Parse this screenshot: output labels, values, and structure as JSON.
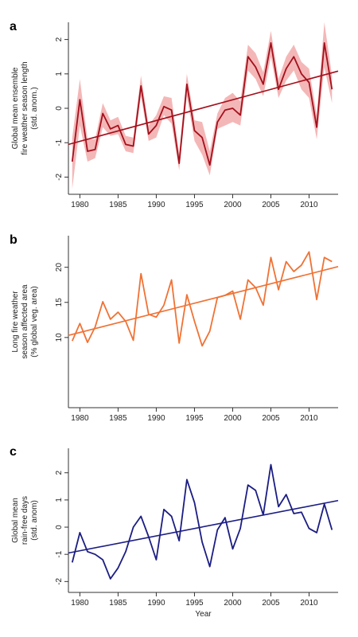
{
  "chart_data": [
    {
      "type": "line",
      "panel_label": "a",
      "ylabel_lines": [
        "Global mean ensemble",
        "fire weather season length",
        "(std. anom.)"
      ],
      "xlabel": "",
      "xlim": [
        1978.5,
        2013.8
      ],
      "ylim": [
        -2.5,
        2.5
      ],
      "xticks": [
        1980,
        1985,
        1990,
        1995,
        2000,
        2005,
        2010
      ],
      "yticks": [
        -2,
        -1,
        0,
        1,
        2
      ],
      "colors": {
        "line": "#a3101c",
        "band": "#f4b7b7",
        "trend": "#a3101c"
      },
      "series": [
        {
          "role": "mean",
          "x": [
            1979,
            1980,
            1981,
            1982,
            1983,
            1984,
            1985,
            1986,
            1987,
            1988,
            1989,
            1990,
            1991,
            1992,
            1993,
            1994,
            1995,
            1996,
            1997,
            1998,
            1999,
            2000,
            2001,
            2002,
            2003,
            2004,
            2005,
            2006,
            2007,
            2008,
            2009,
            2010,
            2011,
            2012,
            2013
          ],
          "values": [
            -1.55,
            0.25,
            -1.25,
            -1.2,
            -0.15,
            -0.6,
            -0.5,
            -1.05,
            -1.1,
            0.65,
            -0.75,
            -0.5,
            0.05,
            -0.05,
            -1.6,
            0.7,
            -0.65,
            -0.85,
            -1.65,
            -0.4,
            -0.05,
            0.0,
            -0.2,
            1.5,
            1.2,
            0.7,
            1.9,
            0.55,
            1.15,
            1.5,
            1.0,
            0.75,
            -0.55,
            1.9,
            0.55
          ],
          "lower": [
            -2.35,
            -0.5,
            -1.55,
            -1.45,
            -0.55,
            -0.8,
            -0.75,
            -1.25,
            -1.3,
            0.35,
            -0.95,
            -0.85,
            -0.2,
            -0.45,
            -1.8,
            0.35,
            -0.95,
            -1.35,
            -1.95,
            -0.6,
            -0.5,
            -0.4,
            -0.5,
            1.1,
            0.85,
            0.35,
            1.5,
            0.3,
            0.8,
            1.1,
            0.55,
            0.3,
            -0.9,
            1.2,
            0.15
          ],
          "upper": [
            -0.85,
            0.85,
            -0.9,
            -0.9,
            0.15,
            -0.35,
            -0.25,
            -0.8,
            -0.85,
            0.95,
            -0.5,
            -0.2,
            0.35,
            0.3,
            -1.3,
            1.0,
            -0.35,
            -0.4,
            -1.25,
            -0.15,
            0.3,
            0.45,
            0.2,
            1.85,
            1.6,
            1.05,
            2.25,
            0.85,
            1.5,
            1.85,
            1.35,
            1.15,
            -0.2,
            2.5,
            0.95
          ]
        },
        {
          "role": "trend",
          "x": [
            1978.5,
            2013.8
          ],
          "values": [
            -1.05,
            1.08
          ]
        }
      ]
    },
    {
      "type": "line",
      "panel_label": "b",
      "ylabel_lines": [
        "Long fire weather",
        "season affected area",
        "(% global veg. area)"
      ],
      "xlabel": "",
      "xlim": [
        1978.5,
        2013.8
      ],
      "ylim": [
        0,
        24.5
      ],
      "xticks": [
        1980,
        1985,
        1990,
        1995,
        2000,
        2005,
        2010
      ],
      "yticks": [
        10,
        15,
        20
      ],
      "colors": {
        "line": "#f07234",
        "trend": "#f07234"
      },
      "series": [
        {
          "role": "data",
          "x": [
            1979,
            1980,
            1981,
            1982,
            1983,
            1984,
            1985,
            1986,
            1987,
            1988,
            1989,
            1990,
            1991,
            1992,
            1993,
            1994,
            1995,
            1996,
            1997,
            1998,
            1999,
            2000,
            2001,
            2002,
            2003,
            2004,
            2005,
            2006,
            2007,
            2008,
            2009,
            2010,
            2011,
            2012,
            2013
          ],
          "values": [
            9.5,
            12.0,
            9.3,
            11.5,
            15.1,
            12.6,
            13.6,
            12.3,
            9.6,
            19.1,
            13.3,
            12.9,
            14.6,
            18.2,
            9.2,
            16.1,
            12.3,
            8.8,
            10.9,
            15.7,
            16.0,
            16.6,
            12.6,
            18.2,
            17.1,
            14.6,
            21.4,
            16.8,
            20.8,
            19.4,
            20.3,
            22.2,
            15.4,
            21.4,
            20.8
          ]
        },
        {
          "role": "trend",
          "x": [
            1978.5,
            2013.8
          ],
          "values": [
            10.3,
            20.1
          ]
        }
      ]
    },
    {
      "type": "line",
      "panel_label": "c",
      "ylabel_lines": [
        "Global mean",
        "rain-free days",
        "(std. anom)"
      ],
      "xlabel": "Year",
      "xlim": [
        1978.5,
        2013.8
      ],
      "ylim": [
        -2.4,
        2.9
      ],
      "xticks": [
        1980,
        1985,
        1990,
        1995,
        2000,
        2005,
        2010
      ],
      "yticks": [
        -2,
        -1,
        0,
        1,
        2
      ],
      "colors": {
        "line": "#1b1d83",
        "trend": "#1b1d83"
      },
      "series": [
        {
          "role": "data",
          "x": [
            1979,
            1980,
            1981,
            1982,
            1983,
            1984,
            1985,
            1986,
            1987,
            1988,
            1989,
            1990,
            1991,
            1992,
            1993,
            1994,
            1995,
            1996,
            1997,
            1998,
            1999,
            2000,
            2001,
            2002,
            2003,
            2004,
            2005,
            2006,
            2007,
            2008,
            2009,
            2010,
            2011,
            2012,
            2013
          ],
          "values": [
            -1.3,
            -0.2,
            -0.9,
            -1.0,
            -1.2,
            -1.9,
            -1.5,
            -0.9,
            0.0,
            0.4,
            -0.35,
            -1.2,
            0.65,
            0.4,
            -0.5,
            1.75,
            0.9,
            -0.55,
            -1.45,
            -0.1,
            0.35,
            -0.8,
            -0.05,
            1.55,
            1.35,
            0.45,
            2.3,
            0.75,
            1.2,
            0.5,
            0.55,
            -0.05,
            -0.2,
            0.85,
            -0.1
          ]
        },
        {
          "role": "trend",
          "x": [
            1978.5,
            2013.8
          ],
          "values": [
            -0.95,
            0.98
          ]
        }
      ]
    }
  ]
}
